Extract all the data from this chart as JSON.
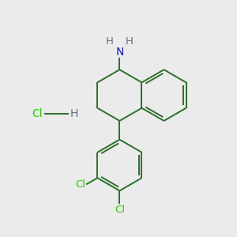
{
  "bg_color": "#ebebeb",
  "bond_color": "#2d6e2d",
  "bond_width": 1.4,
  "N_color": "#1515bb",
  "Cl_color": "#22cc00",
  "H_color": "#607080",
  "font_size_atom": 9.5,
  "figsize": [
    3.0,
    3.0
  ],
  "dpi": 100,
  "xlim": [
    0,
    10
  ],
  "ylim": [
    0,
    10
  ]
}
